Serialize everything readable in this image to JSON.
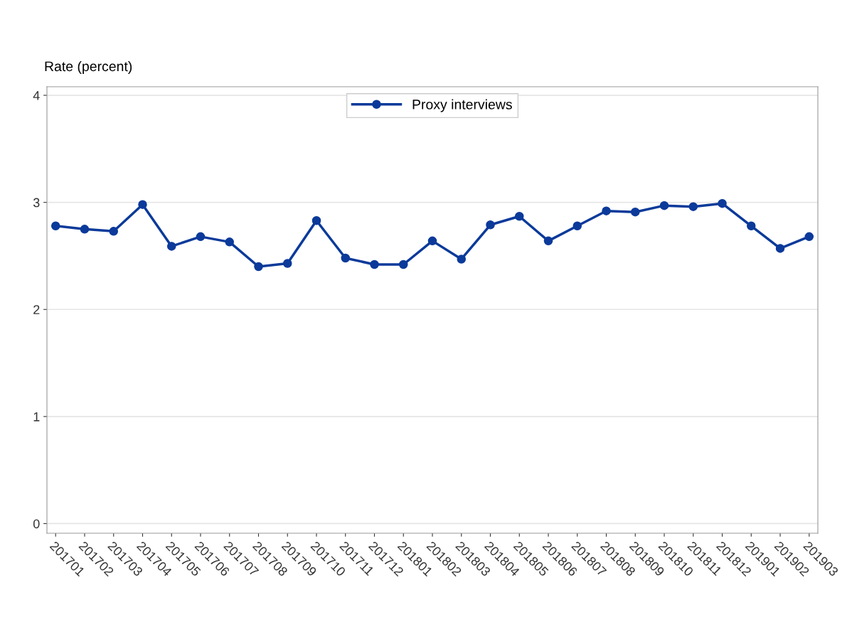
{
  "chart_data": {
    "type": "line",
    "ylabel": "Rate (percent)",
    "categories": [
      "201701",
      "201702",
      "201703",
      "201704",
      "201705",
      "201706",
      "201707",
      "201708",
      "201709",
      "201710",
      "201711",
      "201712",
      "201801",
      "201802",
      "201803",
      "201804",
      "201805",
      "201806",
      "201807",
      "201808",
      "201809",
      "201810",
      "201811",
      "201812",
      "201901",
      "201902",
      "201903"
    ],
    "series": [
      {
        "name": "Proxy interviews",
        "color": "#0b3a9a",
        "values": [
          2.78,
          2.75,
          2.73,
          2.98,
          2.59,
          2.68,
          2.63,
          2.4,
          2.43,
          2.83,
          2.48,
          2.42,
          2.42,
          2.64,
          2.47,
          2.79,
          2.87,
          2.64,
          2.78,
          2.92,
          2.91,
          2.97,
          2.96,
          2.99,
          2.78,
          2.57,
          2.68
        ]
      }
    ],
    "ylim": [
      -0.09,
      4.08
    ],
    "yticks": [
      0,
      1,
      2,
      3,
      4
    ],
    "grid": "y",
    "legend": "top",
    "marker": "circle",
    "line_style": "solid"
  }
}
